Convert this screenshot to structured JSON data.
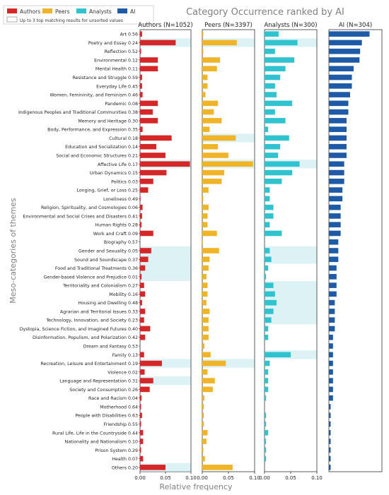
{
  "chart_data": {
    "type": "bar",
    "orientation": "horizontal",
    "title": "Category Occurrence ranked by AI",
    "ylabel": "Meso-categories of themes",
    "xlabel": "Relative frequency",
    "legend": {
      "position": "top-left",
      "entries": [
        "Authors",
        "Peers",
        "Analysts",
        "AI"
      ],
      "note": "Up to 3 top matching results for unsorted values"
    },
    "colors": {
      "Authors": "#d62728",
      "Peers": "#f0b429",
      "Analysts": "#2fc3cf",
      "AI": "#1f5aa6",
      "highlight": "#bfe8ec"
    },
    "panels": [
      {
        "name": "Authors",
        "title": "Authors (N=1052)",
        "xlim": [
          0,
          0.1
        ],
        "ticks": [
          "0.00",
          "0.05",
          "0.10"
        ]
      },
      {
        "name": "Peers",
        "title": "Peers (N=3397)",
        "xlim": [
          0,
          0.1
        ],
        "ticks": [
          "0.00",
          "0.05",
          "0.10"
        ]
      },
      {
        "name": "Analysts",
        "title": "Analysts (N=300)",
        "xlim": [
          0,
          0.1
        ],
        "ticks": [
          "0.00",
          "0.05",
          "0.10"
        ]
      },
      {
        "name": "AI",
        "title": "AI (N=304)",
        "xlim": [
          0,
          0.09
        ],
        "ticks": []
      }
    ],
    "categories": [
      "Art",
      "Poetry and Essay",
      "Reflection",
      "Environmental",
      "Mental Health",
      "Resistance and Struggle",
      "Everyday Life",
      "Women, Femininity, and Feminism",
      "Pandemic",
      "Indigenous Peoples and Traditional Communities",
      "Memory and Heritage",
      "Body, Performance, and Expression",
      "Cultural",
      "Education and Socialization",
      "Social and Economic Structures",
      "Affective Life",
      "Urban Dynamics",
      "Politics",
      "Longing, Grief, or Loss",
      "Loneliness",
      "Religion, Spirituality, and Cosmologies",
      "Environmental and Social Crises and Disasters",
      "Human Rights",
      "Work and Craft",
      "Biography",
      "Gender and Sexuality",
      "Sound and Soundscape",
      "Food and Traditional Treatments",
      "Gender-based Violence and Prejudice",
      "Territoriality and Colonialism",
      "Mobility",
      "Housing and Dwelling",
      "Agrarian and Territorial Issues",
      "Technology, Innovation, and Society",
      "Dystopia, Science Fiction, and Imagined Futures",
      "Disinformation, Populism, and Polarization",
      "Dream and Fantasy",
      "Family",
      "Recreation, Leisure and Entertainment",
      "Violence",
      "Language and Representation",
      "Society and Consumption",
      "Race and Racism",
      "Motherhood",
      "People with Disabilities",
      "Friendship",
      "Rural Life, Life in the Countryside",
      "Nationality and Nationalism",
      "Prison System",
      "Health",
      "Others"
    ],
    "scores": [
      "0.56",
      "0.24",
      "0.52",
      "0.12",
      "0.11",
      "0.59",
      "0.45",
      "0.46",
      "0.08",
      "0.38",
      "0.30",
      "0.35",
      "0.18",
      "0.14",
      "0.21",
      "0.17",
      "0.15",
      "0.03",
      "0.25",
      "0.49",
      "0.06",
      "0.41",
      "0.28",
      "0.09",
      "0.57",
      "0.05",
      "0.37",
      "0.36",
      "0.01",
      "0.27",
      "0.16",
      "0.48",
      "0.33",
      "0.23",
      "0.40",
      "0.42",
      "0.53",
      "0.13",
      "0.19",
      "0.02",
      "0.31",
      "0.26",
      "0.04",
      "0.64",
      "0.63",
      "0.55",
      "0.44",
      "0.10",
      "0.29",
      "0.07",
      "0.20"
    ],
    "series": [
      {
        "name": "Authors",
        "values": [
          0.004,
          0.07,
          0.002,
          0.035,
          0.035,
          0.004,
          0.004,
          0.005,
          0.035,
          0.025,
          0.035,
          0.005,
          0.062,
          0.032,
          0.05,
          0.098,
          0.052,
          0.026,
          0.016,
          0.001,
          0.005,
          0.004,
          0.003,
          0.026,
          0.0,
          0.022,
          0.016,
          0.01,
          0.003,
          0.008,
          0.01,
          0.004,
          0.01,
          0.008,
          0.02,
          0.01,
          0.0,
          0.008,
          0.043,
          0.009,
          0.026,
          0.019,
          0.003,
          0.002,
          0.004,
          0.002,
          0.006,
          0.006,
          0.002,
          0.006,
          0.05
        ]
      },
      {
        "name": "Peers",
        "values": [
          0.002,
          0.066,
          0.002,
          0.034,
          0.028,
          0.01,
          0.01,
          0.006,
          0.03,
          0.022,
          0.037,
          0.014,
          0.064,
          0.03,
          0.05,
          0.097,
          0.042,
          0.037,
          0.012,
          0.002,
          0.012,
          0.01,
          0.01,
          0.028,
          0.001,
          0.032,
          0.014,
          0.012,
          0.008,
          0.01,
          0.01,
          0.008,
          0.014,
          0.012,
          0.012,
          0.012,
          0.004,
          0.016,
          0.045,
          0.01,
          0.024,
          0.02,
          0.004,
          0.003,
          0.003,
          0.003,
          0.01,
          0.008,
          0.002,
          0.005,
          0.058
        ]
      },
      {
        "name": "Analysts",
        "values": [
          0.027,
          0.063,
          0.02,
          0.057,
          0.04,
          0.03,
          0.02,
          0.023,
          0.053,
          0.02,
          0.04,
          0.007,
          0.047,
          0.03,
          0.026,
          0.067,
          0.053,
          0.033,
          0.01,
          0.01,
          0.017,
          0.017,
          0.01,
          0.033,
          0.0,
          0.01,
          0.013,
          0.007,
          0.003,
          0.017,
          0.02,
          0.023,
          0.017,
          0.013,
          0.007,
          0.007,
          0.0,
          0.05,
          0.01,
          0.007,
          0.007,
          0.007,
          0.003,
          0.0,
          0.003,
          0.003,
          0.007,
          0.003,
          0.003,
          0.003,
          0.0
        ]
      },
      {
        "name": "AI",
        "values": [
          0.069,
          0.056,
          0.053,
          0.052,
          0.042,
          0.039,
          0.039,
          0.036,
          0.033,
          0.033,
          0.03,
          0.03,
          0.03,
          0.03,
          0.03,
          0.026,
          0.026,
          0.026,
          0.023,
          0.023,
          0.02,
          0.02,
          0.02,
          0.02,
          0.016,
          0.016,
          0.016,
          0.013,
          0.013,
          0.013,
          0.013,
          0.01,
          0.01,
          0.01,
          0.01,
          0.007,
          0.007,
          0.007,
          0.007,
          0.007,
          0.007,
          0.007,
          0.007,
          0.003,
          0.003,
          0.003,
          0.003,
          0.003,
          0.003,
          0.003,
          0.003
        ]
      }
    ],
    "highlights": {
      "Authors": [
        1,
        15,
        25,
        26,
        27,
        28,
        38,
        40,
        50
      ],
      "Peers": [
        1,
        12,
        15,
        38
      ],
      "Analysts": [
        1,
        15,
        25,
        26,
        29,
        30,
        31,
        32,
        33,
        37
      ]
    }
  }
}
